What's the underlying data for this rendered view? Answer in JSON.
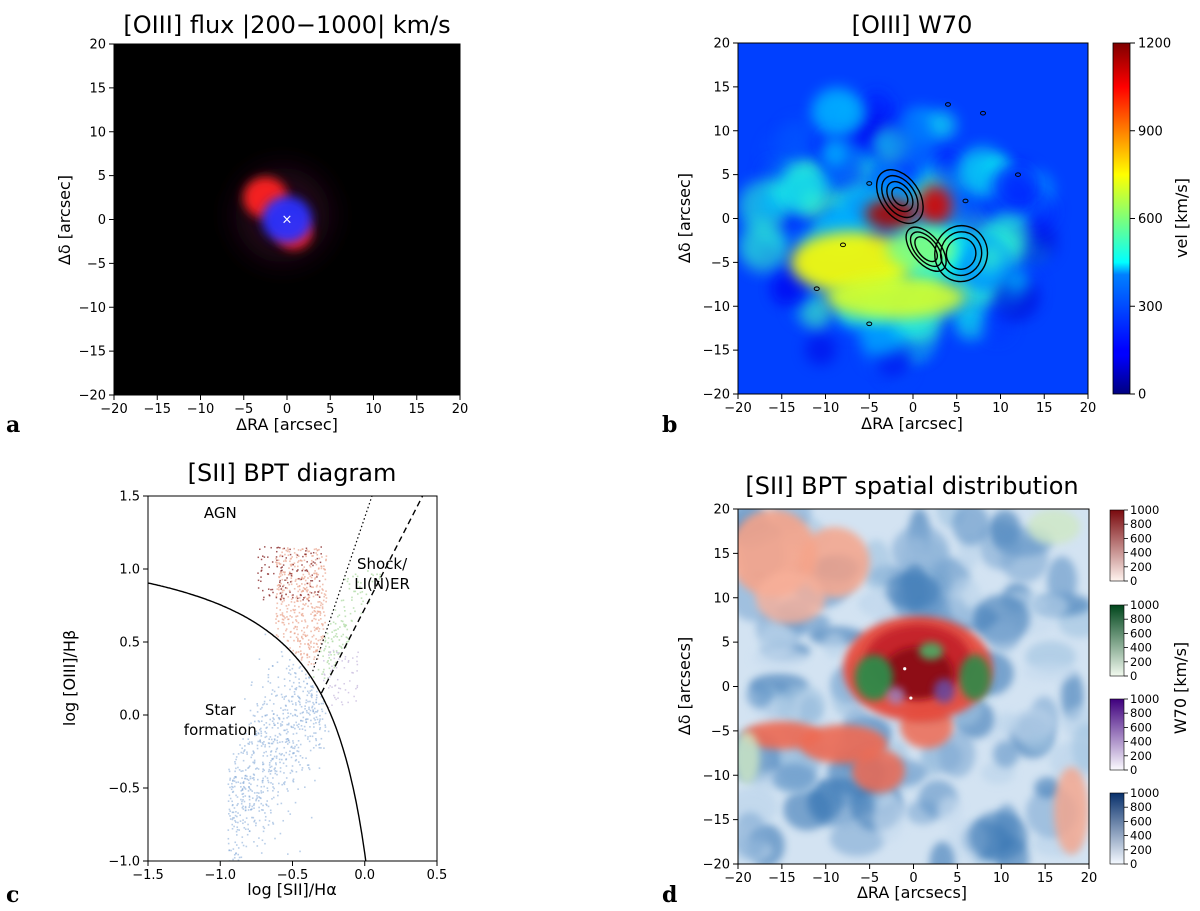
{
  "chart_data": [
    {
      "type": "heatmap",
      "panel": "a",
      "title": "[OIII] flux |200−1000| km/s",
      "xlabel": "ΔRA [arcsec]",
      "ylabel": "Δδ [arcsec]",
      "xlim": [
        -20,
        20
      ],
      "ylim": [
        -20,
        20
      ],
      "xticks": [
        -20,
        -15,
        -10,
        -5,
        0,
        5,
        10,
        15,
        20
      ],
      "yticks": [
        -20,
        -15,
        -10,
        -5,
        0,
        5,
        10,
        15,
        20
      ],
      "sources": [
        {
          "name": "red lobe NE",
          "color": "#ff2020",
          "x": -2.5,
          "y": 2.5,
          "sigma": 1.6
        },
        {
          "name": "red lobe SW",
          "color": "#ff2020",
          "x": 0.8,
          "y": -1.5,
          "sigma": 1.3
        },
        {
          "name": "blue core",
          "color": "#2a30ff",
          "x": 0,
          "y": 0,
          "sigma": 1.8
        }
      ],
      "center_marker": {
        "symbol": "×",
        "x": 0,
        "y": 0
      }
    },
    {
      "type": "heatmap",
      "panel": "b",
      "title": "[OIII] W70",
      "xlabel": "ΔRA [arcsec]",
      "ylabel": "Δδ [arcsec]",
      "xlim": [
        -20,
        20
      ],
      "ylim": [
        -20,
        20
      ],
      "xticks": [
        -20,
        -15,
        -10,
        -5,
        0,
        5,
        10,
        15,
        20
      ],
      "yticks": [
        -20,
        -15,
        -10,
        -5,
        0,
        5,
        10,
        15,
        20
      ],
      "colorbar": {
        "label": "vel [km/s]",
        "min": 0,
        "max": 1200,
        "ticks": [
          0,
          300,
          600,
          900,
          1200
        ],
        "colormap": "jet"
      },
      "hotspots": [
        {
          "x": -2.5,
          "y": 0.5,
          "value": 1150,
          "sx": 3.0,
          "sy": 1.8
        },
        {
          "x": 2.5,
          "y": 1.5,
          "value": 1100,
          "sx": 2.0,
          "sy": 2.2
        },
        {
          "x": -7,
          "y": -5,
          "value": 750,
          "sx": 7,
          "sy": 3.5
        },
        {
          "x": -2,
          "y": -9,
          "value": 700,
          "sx": 8,
          "sy": 2.5
        },
        {
          "x": 1,
          "y": -3.5,
          "value": 600,
          "sx": 4,
          "sy": 2.5
        }
      ],
      "contours": "radio emission, black lines"
    },
    {
      "type": "scatter",
      "panel": "c",
      "title": "[SII] BPT diagram",
      "xlabel": "log [SII]/Hα",
      "ylabel": "log [OIII]/Hβ",
      "xlim": [
        -1.5,
        0.5
      ],
      "ylim": [
        -1.0,
        1.5
      ],
      "xticks": [
        -1.5,
        -1.0,
        -0.5,
        0.0,
        0.5
      ],
      "yticks": [
        -1.0,
        -0.5,
        0.0,
        0.5,
        1.0,
        1.5
      ],
      "regions": [
        {
          "label": "AGN",
          "x": -1.0,
          "y": 1.35
        },
        {
          "label": "Shock/ LI(N)ER",
          "x": 0.12,
          "y": 1.0
        },
        {
          "label": "Star formation",
          "x": -1.0,
          "y": 0.0
        }
      ],
      "lines": [
        {
          "name": "Kewley max starburst",
          "style": "solid",
          "formula": "0.72/(x-0.32)+1.30"
        },
        {
          "name": "Seyfert/LINER dotted",
          "style": "dotted",
          "points": [
            [
              -0.36,
              0.3
            ],
            [
              0.05,
              1.5
            ]
          ]
        },
        {
          "name": "Seyfert/LINER dashed",
          "style": "dashed",
          "points": [
            [
              -0.3,
              0.15
            ],
            [
              0.4,
              1.5
            ]
          ]
        }
      ],
      "series": [
        {
          "name": "Star formation",
          "color": "#7fa6d6",
          "center": [
            -0.62,
            -0.15
          ],
          "count": 900
        },
        {
          "name": "AGN",
          "color": "#eaa58e",
          "center": [
            -0.45,
            0.72
          ],
          "count": 500
        },
        {
          "name": "AGN high W70",
          "color": "#8a2c2c",
          "center": [
            -0.6,
            1.05
          ],
          "count": 120
        },
        {
          "name": "LI(N)ER",
          "color": "#b3dca9",
          "center": [
            -0.22,
            0.65
          ],
          "count": 120
        },
        {
          "name": "Shock",
          "color": "#c9bddf",
          "center": [
            -0.2,
            0.3
          ],
          "count": 60
        }
      ]
    },
    {
      "type": "heatmap",
      "panel": "d",
      "title": "[SII] BPT spatial distribution",
      "xlabel": "ΔRA [arcsecs]",
      "ylabel": "Δδ [arcsecs]",
      "xlim": [
        -20,
        20
      ],
      "ylim": [
        -20,
        20
      ],
      "xticks": [
        -20,
        -15,
        -10,
        -5,
        0,
        5,
        10,
        15,
        20
      ],
      "yticks": [
        -20,
        -15,
        -10,
        -5,
        0,
        5,
        10,
        15,
        20
      ],
      "colorbar_label": "W70 [km/s]",
      "colorbars": [
        {
          "name": "AGN",
          "min": 0,
          "max": 1000,
          "ticks": [
            0,
            200,
            400,
            600,
            800,
            1000
          ],
          "light": "#fff4ef",
          "dark": "#7a0a0e"
        },
        {
          "name": "LINER",
          "min": 0,
          "max": 1000,
          "ticks": [
            0,
            200,
            400,
            600,
            800,
            1000
          ],
          "light": "#f2faef",
          "dark": "#00461c"
        },
        {
          "name": "Shock",
          "min": 0,
          "max": 1000,
          "ticks": [
            0,
            200,
            400,
            600,
            800,
            1000
          ],
          "light": "#fbfaff",
          "dark": "#3f007d"
        },
        {
          "name": "Star formation",
          "min": 0,
          "max": 1000,
          "ticks": [
            0,
            200,
            400,
            600,
            800,
            1000
          ],
          "light": "#f4f9ff",
          "dark": "#08306b"
        }
      ]
    }
  ],
  "panel_labels": [
    "a",
    "b",
    "c",
    "d"
  ]
}
